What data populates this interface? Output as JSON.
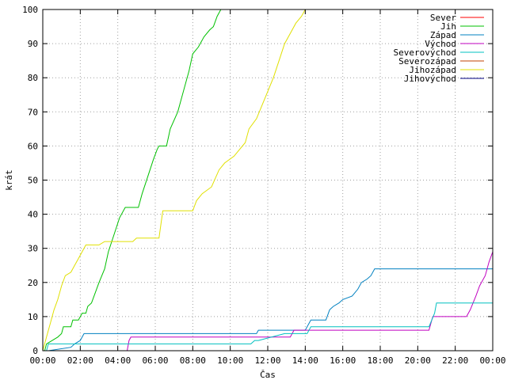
{
  "chart_data": {
    "type": "line",
    "title": "",
    "xlabel": "Čas",
    "ylabel": "krát",
    "xlim": [
      0,
      24
    ],
    "ylim": [
      0,
      100
    ],
    "x_ticks": [
      {
        "value": 0,
        "label": "00:00"
      },
      {
        "value": 2,
        "label": "02:00"
      },
      {
        "value": 4,
        "label": "04:00"
      },
      {
        "value": 6,
        "label": "06:00"
      },
      {
        "value": 8,
        "label": "08:00"
      },
      {
        "value": 10,
        "label": "10:00"
      },
      {
        "value": 12,
        "label": "12:00"
      },
      {
        "value": 14,
        "label": "14:00"
      },
      {
        "value": 16,
        "label": "16:00"
      },
      {
        "value": 18,
        "label": "18:00"
      },
      {
        "value": 20,
        "label": "20:00"
      },
      {
        "value": 22,
        "label": "22:00"
      },
      {
        "value": 24,
        "label": "00:00"
      }
    ],
    "y_ticks": [
      0,
      10,
      20,
      30,
      40,
      50,
      60,
      70,
      80,
      90,
      100
    ],
    "legend_position": "top-right",
    "series": [
      {
        "name": "Sever",
        "color": "#ff0000",
        "points": []
      },
      {
        "name": "Jih",
        "color": "#00c000",
        "points": [
          [
            0.1,
            0
          ],
          [
            0.2,
            2
          ],
          [
            0.8,
            4
          ],
          [
            1.0,
            5
          ],
          [
            1.1,
            7
          ],
          [
            1.5,
            7
          ],
          [
            1.6,
            9
          ],
          [
            1.9,
            9
          ],
          [
            2.1,
            11
          ],
          [
            2.3,
            11
          ],
          [
            2.4,
            13
          ],
          [
            2.6,
            14
          ],
          [
            2.8,
            17
          ],
          [
            3.0,
            20
          ],
          [
            3.3,
            24
          ],
          [
            3.5,
            29
          ],
          [
            3.8,
            34
          ],
          [
            4.1,
            39
          ],
          [
            4.4,
            42
          ],
          [
            5.1,
            42
          ],
          [
            5.3,
            46
          ],
          [
            5.6,
            51
          ],
          [
            5.9,
            56
          ],
          [
            6.1,
            59
          ],
          [
            6.2,
            60
          ],
          [
            6.6,
            60
          ],
          [
            6.8,
            65
          ],
          [
            7.2,
            70
          ],
          [
            7.5,
            76
          ],
          [
            7.8,
            82
          ],
          [
            8.0,
            87
          ],
          [
            8.3,
            89
          ],
          [
            8.6,
            92
          ],
          [
            8.9,
            94
          ],
          [
            9.1,
            95
          ],
          [
            9.3,
            98
          ],
          [
            9.5,
            100
          ]
        ]
      },
      {
        "name": "Západ",
        "color": "#0080c0",
        "points": [
          [
            0.3,
            0
          ],
          [
            1.5,
            1
          ],
          [
            1.7,
            2
          ],
          [
            2.0,
            3
          ],
          [
            2.1,
            4
          ],
          [
            2.2,
            5
          ],
          [
            11.4,
            5
          ],
          [
            11.5,
            6
          ],
          [
            14.0,
            6
          ],
          [
            14.3,
            9
          ],
          [
            15.1,
            9
          ],
          [
            15.3,
            12
          ],
          [
            15.5,
            13
          ],
          [
            15.8,
            14
          ],
          [
            16.0,
            15
          ],
          [
            16.5,
            16
          ],
          [
            16.8,
            18
          ],
          [
            17.0,
            20
          ],
          [
            17.3,
            21
          ],
          [
            17.5,
            22
          ],
          [
            17.7,
            24
          ],
          [
            24.0,
            24
          ]
        ]
      },
      {
        "name": "Východ",
        "color": "#c000c0",
        "points": [
          [
            4.5,
            0
          ],
          [
            4.6,
            3
          ],
          [
            4.7,
            4
          ],
          [
            13.2,
            4
          ],
          [
            13.4,
            6
          ],
          [
            20.6,
            6
          ],
          [
            20.8,
            10
          ],
          [
            22.6,
            10
          ],
          [
            22.8,
            12
          ],
          [
            23.1,
            16
          ],
          [
            23.3,
            19
          ],
          [
            23.6,
            22
          ],
          [
            23.8,
            26
          ],
          [
            24.0,
            29
          ]
        ]
      },
      {
        "name": "Severovýchod",
        "color": "#00c0c0",
        "points": [
          [
            0.2,
            0
          ],
          [
            0.3,
            2
          ],
          [
            11.1,
            2
          ],
          [
            11.3,
            3
          ],
          [
            11.5,
            3
          ],
          [
            12.9,
            5
          ],
          [
            14.1,
            5
          ],
          [
            14.3,
            7
          ],
          [
            20.6,
            7
          ],
          [
            20.9,
            11
          ],
          [
            21.0,
            14
          ],
          [
            24.0,
            14
          ]
        ]
      },
      {
        "name": "Severozápad",
        "color": "#c04000",
        "points": []
      },
      {
        "name": "Jihozápad",
        "color": "#e0e000",
        "points": [
          [
            0.0,
            0
          ],
          [
            0.2,
            4
          ],
          [
            0.4,
            8
          ],
          [
            0.6,
            12
          ],
          [
            0.8,
            15
          ],
          [
            1.0,
            19
          ],
          [
            1.2,
            22
          ],
          [
            1.5,
            23
          ],
          [
            1.7,
            25
          ],
          [
            1.9,
            27
          ],
          [
            2.1,
            29
          ],
          [
            2.3,
            31
          ],
          [
            3.0,
            31
          ],
          [
            3.3,
            32
          ],
          [
            4.8,
            32
          ],
          [
            5.0,
            33
          ],
          [
            6.2,
            33
          ],
          [
            6.4,
            41
          ],
          [
            8.0,
            41
          ],
          [
            8.2,
            44
          ],
          [
            8.5,
            46
          ],
          [
            9.0,
            48
          ],
          [
            9.4,
            53
          ],
          [
            9.7,
            55
          ],
          [
            10.2,
            57
          ],
          [
            10.8,
            61
          ],
          [
            11.0,
            65
          ],
          [
            11.4,
            68
          ],
          [
            11.7,
            72
          ],
          [
            12.0,
            76
          ],
          [
            12.3,
            80
          ],
          [
            12.6,
            85
          ],
          [
            12.9,
            90
          ],
          [
            13.2,
            93
          ],
          [
            13.5,
            96
          ],
          [
            13.8,
            98
          ],
          [
            14.0,
            100
          ]
        ]
      },
      {
        "name": "Jihovýchod",
        "color": "#000080",
        "points": []
      }
    ]
  }
}
